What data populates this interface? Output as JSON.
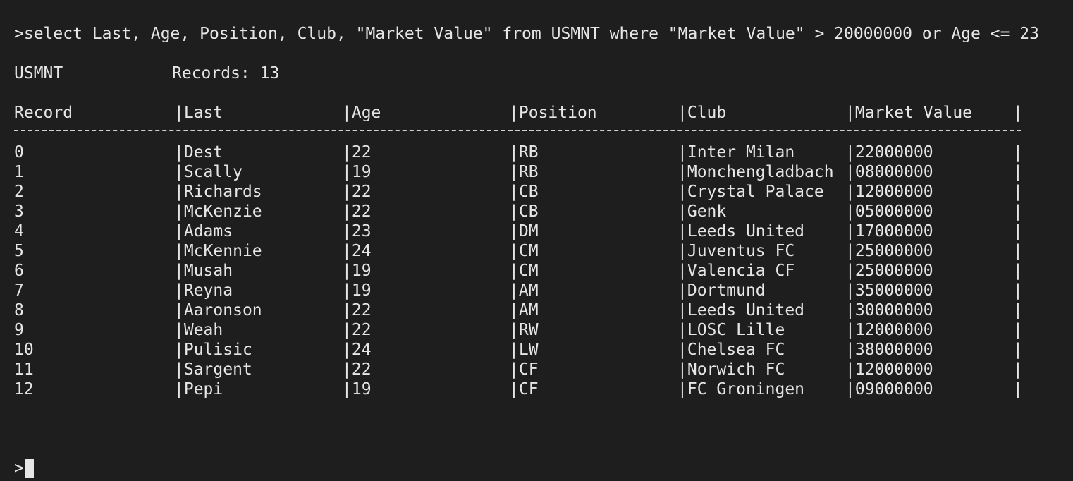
{
  "command": ">select Last, Age, Position, Club, \"Market Value\" from USMNT where \"Market Value\" > 20000000 or Age <= 23",
  "table_name": "USMNT",
  "records_label": "Records: 13",
  "columns": [
    "Record",
    "Last",
    "Age",
    "Position",
    "Club",
    "Market Value"
  ],
  "rows": [
    [
      "0",
      "Dest",
      "22",
      "RB",
      "Inter Milan",
      "22000000"
    ],
    [
      "1",
      "Scally",
      "19",
      "RB",
      "Monchengladbach",
      "08000000"
    ],
    [
      "2",
      "Richards",
      "22",
      "CB",
      "Crystal Palace",
      "12000000"
    ],
    [
      "3",
      "McKenzie",
      "22",
      "CB",
      "Genk",
      "05000000"
    ],
    [
      "4",
      "Adams",
      "23",
      "DM",
      "Leeds United",
      "17000000"
    ],
    [
      "5",
      "McKennie",
      "24",
      "CM",
      "Juventus FC",
      "25000000"
    ],
    [
      "6",
      "Musah",
      "19",
      "CM",
      "Valencia CF",
      "25000000"
    ],
    [
      "7",
      "Reyna",
      "19",
      "AM",
      "Dortmund",
      "35000000"
    ],
    [
      "8",
      "Aaronson",
      "22",
      "AM",
      "Leeds United",
      "30000000"
    ],
    [
      "9",
      "Weah",
      "22",
      "RW",
      "LOSC Lille",
      "12000000"
    ],
    [
      "10",
      "Pulisic",
      "24",
      "LW",
      "Chelsea FC",
      "38000000"
    ],
    [
      "11",
      "Sargent",
      "22",
      "CF",
      "Norwich FC",
      "12000000"
    ],
    [
      "12",
      "Pepi",
      "19",
      "CF",
      "FC Groningen",
      "09000000"
    ]
  ],
  "column_separator": "|",
  "prompt": ">",
  "colors": {
    "background": "#1e1e1e",
    "text": "#e6e6e6"
  }
}
